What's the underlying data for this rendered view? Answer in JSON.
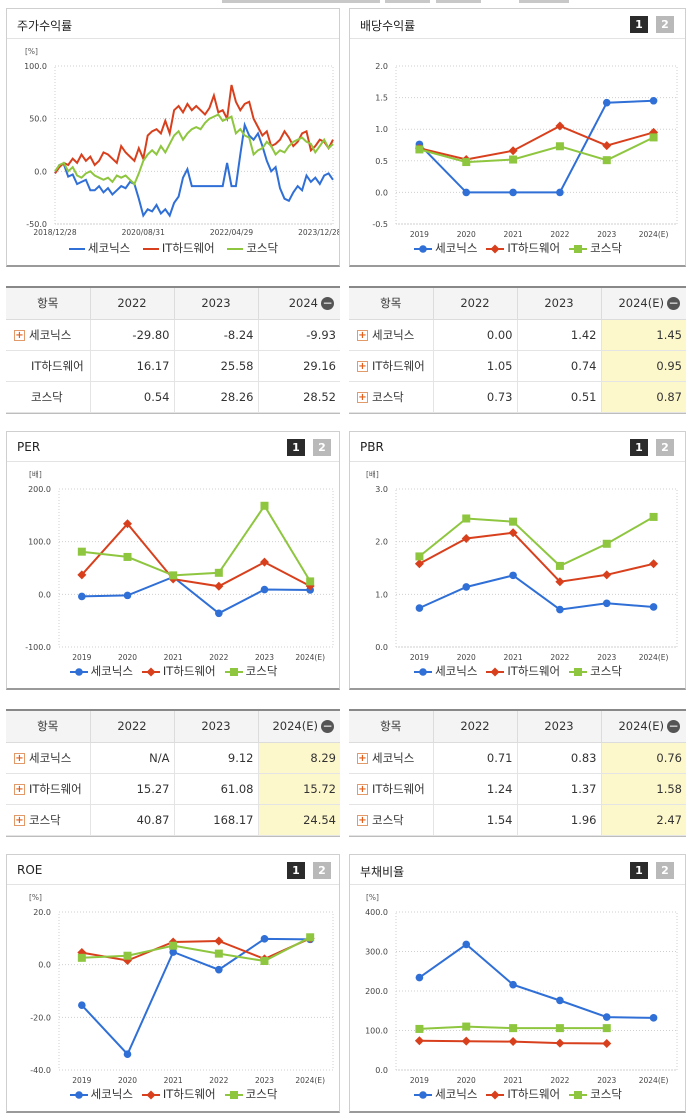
{
  "colors": {
    "s1": "#2f6fd6",
    "s2": "#d8401d",
    "s3": "#8ec63f"
  },
  "legend": [
    "세코닉스",
    "IT하드웨어",
    "코스닥"
  ],
  "charts": {
    "stock": {
      "title": "주가수익률",
      "has_pager": false,
      "chart_data": {
        "type": "line",
        "unit": "[%]",
        "ylim": [
          -50,
          100
        ],
        "yticks": [
          "100.0",
          "50.0",
          "0.0",
          "-50.0"
        ],
        "ytick_values": [
          100,
          50,
          0,
          -50
        ],
        "xtick_labels": [
          "2018/12/28",
          "2020/08/31",
          "2022/04/29",
          "2023/12/28"
        ],
        "xtick_index": [
          0,
          20,
          40,
          60
        ],
        "n": 64,
        "series": [
          {
            "name": "세코닉스",
            "values": [
              -2,
              6,
              7,
              -5,
              -3,
              -12,
              -10,
              -8,
              -18,
              -18,
              -14,
              -20,
              -16,
              -22,
              -18,
              -14,
              -16,
              -10,
              -12,
              -26,
              -42,
              -36,
              -38,
              -32,
              -40,
              -36,
              -42,
              -30,
              -24,
              -6,
              2,
              -14,
              -14,
              -14,
              -14,
              -14,
              -14,
              -14,
              -14,
              8,
              -14,
              -14,
              16,
              44,
              34,
              30,
              36,
              24,
              10,
              0,
              4,
              -16,
              -26,
              -28,
              -20,
              -14,
              -18,
              -4,
              -10,
              -6,
              -12,
              -4,
              -2,
              -8
            ]
          },
          {
            "name": "IT하드웨어",
            "values": [
              -2,
              4,
              8,
              6,
              12,
              8,
              16,
              10,
              14,
              6,
              10,
              18,
              16,
              12,
              8,
              24,
              18,
              14,
              10,
              22,
              12,
              34,
              38,
              40,
              36,
              48,
              36,
              58,
              62,
              56,
              64,
              58,
              62,
              58,
              54,
              60,
              72,
              56,
              58,
              50,
              82,
              66,
              58,
              64,
              66,
              50,
              42,
              34,
              38,
              24,
              26,
              30,
              38,
              32,
              24,
              28,
              36,
              38,
              20,
              24,
              30,
              28,
              22,
              30
            ]
          },
          {
            "name": "코스닥",
            "values": [
              0,
              6,
              8,
              0,
              4,
              -4,
              -6,
              -2,
              0,
              -4,
              -6,
              -8,
              -6,
              -10,
              -4,
              -6,
              -4,
              -8,
              -12,
              -2,
              10,
              16,
              20,
              16,
              24,
              18,
              26,
              34,
              38,
              30,
              36,
              40,
              42,
              40,
              46,
              50,
              52,
              54,
              48,
              50,
              52,
              36,
              40,
              34,
              32,
              16,
              20,
              22,
              28,
              24,
              16,
              20,
              18,
              24,
              28,
              30,
              32,
              28,
              26,
              18,
              24,
              30,
              22,
              26
            ]
          }
        ]
      }
    },
    "dividend": {
      "title": "배당수익률",
      "has_pager": true,
      "chart_data": {
        "type": "line",
        "unit": "",
        "ylim": [
          -0.5,
          2.0
        ],
        "yticks": [
          "2.0",
          "1.5",
          "1.0",
          "0.5",
          "0.0",
          "-0.5"
        ],
        "ytick_values": [
          2.0,
          1.5,
          1.0,
          0.5,
          0.0,
          -0.5
        ],
        "categories": [
          "2019",
          "2020",
          "2021",
          "2022",
          "2023",
          "2024(E)"
        ],
        "series": [
          {
            "name": "세코닉스",
            "values": [
              0.76,
              0.0,
              0.0,
              0.0,
              1.42,
              1.45
            ]
          },
          {
            "name": "IT하드웨어",
            "values": [
              0.7,
              0.52,
              0.66,
              1.05,
              0.74,
              0.95
            ]
          },
          {
            "name": "코스닥",
            "values": [
              0.68,
              0.48,
              0.52,
              0.73,
              0.51,
              0.87
            ]
          }
        ]
      }
    },
    "per": {
      "title": "PER",
      "has_pager": true,
      "chart_data": {
        "type": "line",
        "unit": "[배]",
        "ylim": [
          -100,
          200
        ],
        "yticks": [
          "200.0",
          "100.0",
          "0.0",
          "-100.0"
        ],
        "ytick_values": [
          200,
          100,
          0,
          -100
        ],
        "categories": [
          "2019",
          "2020",
          "2021",
          "2022",
          "2023",
          "2024(E)"
        ],
        "series": [
          {
            "name": "세코닉스",
            "values": [
              -4,
              -2,
              33,
              -36,
              9.12,
              8.29
            ]
          },
          {
            "name": "IT하드웨어",
            "values": [
              37,
              134,
              29,
              15.27,
              61.08,
              15.72
            ]
          },
          {
            "name": "코스닥",
            "values": [
              81,
              71,
              36,
              40.87,
              168.17,
              24.54
            ]
          }
        ]
      }
    },
    "pbr": {
      "title": "PBR",
      "has_pager": true,
      "chart_data": {
        "type": "line",
        "unit": "[배]",
        "ylim": [
          0,
          3
        ],
        "yticks": [
          "3.0",
          "2.0",
          "1.0",
          "0.0"
        ],
        "ytick_values": [
          3,
          2,
          1,
          0
        ],
        "categories": [
          "2019",
          "2020",
          "2021",
          "2022",
          "2023",
          "2024(E)"
        ],
        "series": [
          {
            "name": "세코닉스",
            "values": [
              0.74,
              1.14,
              1.36,
              0.71,
              0.83,
              0.76
            ]
          },
          {
            "name": "IT하드웨어",
            "values": [
              1.58,
              2.06,
              2.17,
              1.24,
              1.37,
              1.58
            ]
          },
          {
            "name": "코스닥",
            "values": [
              1.72,
              2.44,
              2.38,
              1.54,
              1.96,
              2.47
            ]
          }
        ]
      }
    },
    "roe": {
      "title": "ROE",
      "has_pager": true,
      "chart_data": {
        "type": "line",
        "unit": "[%]",
        "ylim": [
          -40,
          20
        ],
        "yticks": [
          "20.0",
          "0.0",
          "-20.0",
          "-40.0"
        ],
        "ytick_values": [
          20,
          0,
          -20,
          -40
        ],
        "categories": [
          "2019",
          "2020",
          "2021",
          "2022",
          "2023",
          "2024(E)"
        ],
        "series": [
          {
            "name": "세코닉스",
            "values": [
              -15.4,
              -34.0,
              4.8,
              -1.9,
              9.8,
              9.6
            ]
          },
          {
            "name": "IT하드웨어",
            "values": [
              4.6,
              1.6,
              8.6,
              9.0,
              2.2,
              10.0
            ]
          },
          {
            "name": "코스닥",
            "values": [
              2.6,
              3.4,
              7.2,
              4.2,
              1.4,
              10.4
            ]
          }
        ]
      }
    },
    "debt": {
      "title": "부채비율",
      "has_pager": true,
      "chart_data": {
        "type": "line",
        "unit": "[%]",
        "ylim": [
          0,
          400
        ],
        "yticks": [
          "400.0",
          "300.0",
          "200.0",
          "100.0",
          "0.0"
        ],
        "ytick_values": [
          400,
          300,
          200,
          100,
          0
        ],
        "categories": [
          "2019",
          "2020",
          "2021",
          "2022",
          "2023",
          "2024(E)"
        ],
        "series": [
          {
            "name": "세코닉스",
            "values": [
              234,
              318,
              216,
              176,
              134,
              132
            ]
          },
          {
            "name": "IT하드웨어",
            "values": [
              74,
              73,
              72,
              68,
              67,
              null
            ]
          },
          {
            "name": "코스닥",
            "values": [
              104,
              110,
              106,
              106,
              106,
              null
            ]
          }
        ]
      }
    }
  },
  "tables": {
    "stock": {
      "headers": [
        "항목",
        "2022",
        "2023",
        "2024"
      ],
      "rows": [
        {
          "name": "세코닉스",
          "values": [
            "-29.80",
            "-8.24",
            "-9.93"
          ]
        },
        {
          "name": "IT하드웨어",
          "values": [
            "16.17",
            "25.58",
            "29.16"
          ]
        },
        {
          "name": "코스닥",
          "values": [
            "0.54",
            "28.26",
            "28.52"
          ]
        }
      ]
    },
    "dividend": {
      "headers": [
        "항목",
        "2022",
        "2023",
        "2024(E)"
      ],
      "rows": [
        {
          "name": "세코닉스",
          "values": [
            "0.00",
            "1.42",
            "1.45"
          ]
        },
        {
          "name": "IT하드웨어",
          "values": [
            "1.05",
            "0.74",
            "0.95"
          ]
        },
        {
          "name": "코스닥",
          "values": [
            "0.73",
            "0.51",
            "0.87"
          ]
        }
      ]
    },
    "per": {
      "headers": [
        "항목",
        "2022",
        "2023",
        "2024(E)"
      ],
      "rows": [
        {
          "name": "세코닉스",
          "values": [
            "N/A",
            "9.12",
            "8.29"
          ]
        },
        {
          "name": "IT하드웨어",
          "values": [
            "15.27",
            "61.08",
            "15.72"
          ]
        },
        {
          "name": "코스닥",
          "values": [
            "40.87",
            "168.17",
            "24.54"
          ]
        }
      ]
    },
    "pbr": {
      "headers": [
        "항목",
        "2022",
        "2023",
        "2024(E)"
      ],
      "rows": [
        {
          "name": "세코닉스",
          "values": [
            "0.71",
            "0.83",
            "0.76"
          ]
        },
        {
          "name": "IT하드웨어",
          "values": [
            "1.24",
            "1.37",
            "1.58"
          ]
        },
        {
          "name": "코스닥",
          "values": [
            "1.54",
            "1.96",
            "2.47"
          ]
        }
      ]
    }
  },
  "pager": {
    "p1": "1",
    "p2": "2"
  }
}
